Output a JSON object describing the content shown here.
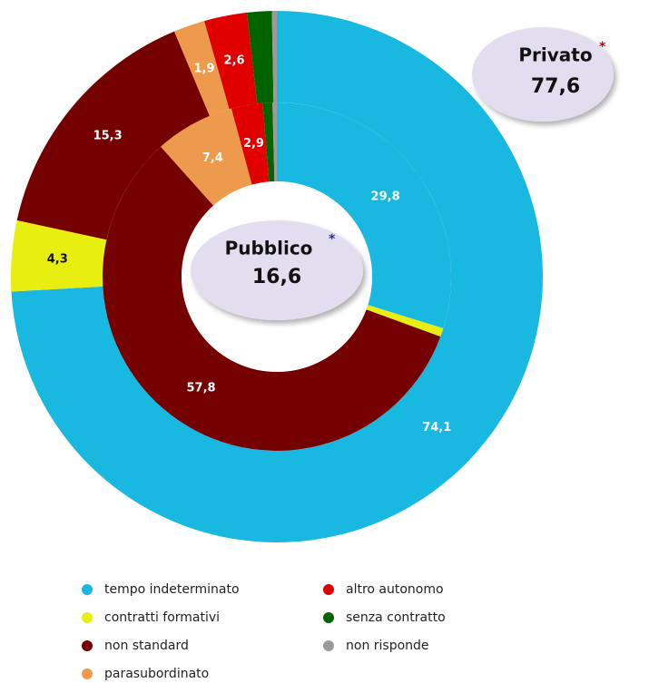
{
  "chart_data": {
    "type": "donut",
    "categories": [
      "tempo indeterminato",
      "contratti formativi",
      "non standard",
      "parasubordinato",
      "altro autonomo",
      "senza contratto",
      "non risponde"
    ],
    "colors": [
      "#18b8e0",
      "#e8ee10",
      "#750000",
      "#ee9a4c",
      "#e00000",
      "#006400",
      "#9a9a9a"
    ],
    "series": [
      {
        "name": "Privato",
        "footnote_mark": "*",
        "total": 77.6,
        "total_label": "77,6",
        "values": [
          74.1,
          4.3,
          15.3,
          1.9,
          2.6,
          1.5,
          0.3
        ],
        "value_labels": [
          "74,1",
          "4,3",
          "15,3",
          "1,9",
          "2,6",
          null,
          null
        ]
      },
      {
        "name": "Pubblico",
        "footnote_mark": "*",
        "total": 16.6,
        "total_label": "16,6",
        "values": [
          29.8,
          0.8,
          57.8,
          7.4,
          2.9,
          0.9,
          0.4
        ],
        "value_labels": [
          "29,8",
          null,
          "57,8",
          "7,4",
          "2,9",
          null,
          null
        ]
      }
    ]
  }
}
